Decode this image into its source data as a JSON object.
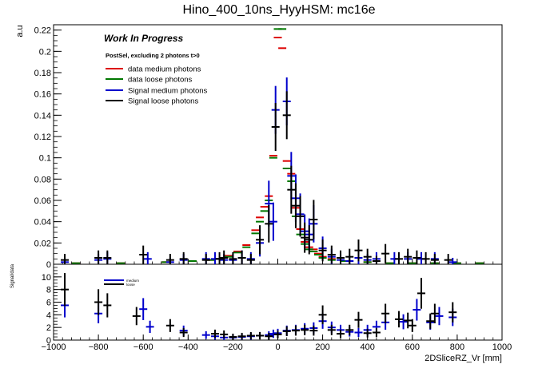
{
  "chart_data": {
    "type": "scatter",
    "title": "Hino_400_10ns_HyyHSM: mc16e",
    "xlabel": "2DSliceRZ_Vr [mm]",
    "xlim": [
      -1000,
      1000
    ],
    "x_ticks": [
      -1000,
      -800,
      -600,
      -400,
      -200,
      0,
      200,
      400,
      600,
      800,
      1000
    ],
    "top_panel": {
      "ylabel": "a.u",
      "ylim": [
        0,
        0.225
      ],
      "y_ticks": [
        "0",
        "0.02",
        "0.04",
        "0.06",
        "0.08",
        "0.1",
        "0.12",
        "0.14",
        "0.16",
        "0.18",
        "0.2",
        "0.22"
      ],
      "annotations": [
        "Work In Progress",
        "PostSel, excluding 2 photons t>0"
      ],
      "series": [
        {
          "name": "data medium photons",
          "color": "#dd0000",
          "points": [
            [
              -900,
              0.001
            ],
            [
              -700,
              0.001
            ],
            [
              -500,
              0.002
            ],
            [
              -380,
              0.003
            ],
            [
              -300,
              0.004
            ],
            [
              -260,
              0.005
            ],
            [
              -220,
              0.008
            ],
            [
              -180,
              0.012
            ],
            [
              -140,
              0.018
            ],
            [
              -100,
              0.032
            ],
            [
              -80,
              0.044
            ],
            [
              -60,
              0.054
            ],
            [
              -40,
              0.064
            ],
            [
              -20,
              0.102
            ],
            [
              0,
              0.213
            ],
            [
              20,
              0.203
            ],
            [
              40,
              0.097
            ],
            [
              60,
              0.085
            ],
            [
              80,
              0.053
            ],
            [
              100,
              0.033
            ],
            [
              120,
              0.021
            ],
            [
              140,
              0.016
            ],
            [
              160,
              0.014
            ],
            [
              180,
              0.01
            ],
            [
              200,
              0.007
            ],
            [
              240,
              0.005
            ],
            [
              300,
              0.003
            ],
            [
              400,
              0.002
            ],
            [
              500,
              0.001
            ],
            [
              600,
              0.001
            ],
            [
              700,
              0.001
            ],
            [
              800,
              0.001
            ],
            [
              900,
              0.001
            ]
          ]
        },
        {
          "name": "data loose photons",
          "color": "#007700",
          "points": [
            [
              -900,
              0.001
            ],
            [
              -700,
              0.001
            ],
            [
              -500,
              0.002
            ],
            [
              -380,
              0.003
            ],
            [
              -300,
              0.004
            ],
            [
              -260,
              0.005
            ],
            [
              -220,
              0.007
            ],
            [
              -180,
              0.011
            ],
            [
              -140,
              0.016
            ],
            [
              -100,
              0.029
            ],
            [
              -80,
              0.04
            ],
            [
              -60,
              0.05
            ],
            [
              -40,
              0.06
            ],
            [
              -20,
              0.1
            ],
            [
              0,
              0.221
            ],
            [
              20,
              0.221
            ],
            [
              40,
              0.09
            ],
            [
              60,
              0.078
            ],
            [
              80,
              0.045
            ],
            [
              100,
              0.028
            ],
            [
              120,
              0.019
            ],
            [
              140,
              0.014
            ],
            [
              160,
              0.012
            ],
            [
              180,
              0.009
            ],
            [
              200,
              0.006
            ],
            [
              240,
              0.004
            ],
            [
              300,
              0.003
            ],
            [
              400,
              0.002
            ],
            [
              500,
              0.001
            ],
            [
              600,
              0.001
            ],
            [
              700,
              0.001
            ],
            [
              800,
              0.001
            ],
            [
              900,
              0.001
            ]
          ]
        },
        {
          "name": "Signal medium photons",
          "color": "#0000cc",
          "points": [
            [
              -950,
              0.002
            ],
            [
              -800,
              0.004
            ],
            [
              -760,
              0.005
            ],
            [
              -580,
              0.005
            ],
            [
              -480,
              0.002
            ],
            [
              -420,
              0.004
            ],
            [
              -320,
              0.005
            ],
            [
              -280,
              0.005
            ],
            [
              -240,
              0.004
            ],
            [
              -200,
              0.004
            ],
            [
              -160,
              0.006
            ],
            [
              -120,
              0.005
            ],
            [
              -80,
              0.02
            ],
            [
              -40,
              0.057
            ],
            [
              -20,
              0.04
            ],
            [
              -10,
              0.145
            ],
            [
              40,
              0.153
            ],
            [
              60,
              0.083
            ],
            [
              80,
              0.062
            ],
            [
              100,
              0.047
            ],
            [
              120,
              0.031
            ],
            [
              140,
              0.028
            ],
            [
              160,
              0.038
            ],
            [
              200,
              0.015
            ],
            [
              240,
              0.007
            ],
            [
              280,
              0.004
            ],
            [
              320,
              0.003
            ],
            [
              360,
              0.006
            ],
            [
              400,
              0.004
            ],
            [
              440,
              0.005
            ],
            [
              520,
              0.005
            ],
            [
              580,
              0.005
            ],
            [
              640,
              0.005
            ],
            [
              700,
              0.005
            ],
            [
              780,
              0.002
            ]
          ]
        },
        {
          "name": "Signal loose photons",
          "color": "#000000",
          "points": [
            [
              -950,
              0.004
            ],
            [
              -800,
              0.006
            ],
            [
              -760,
              0.006
            ],
            [
              -600,
              0.009
            ],
            [
              -480,
              0.004
            ],
            [
              -420,
              0.005
            ],
            [
              -320,
              0.004
            ],
            [
              -260,
              0.005
            ],
            [
              -240,
              0.006
            ],
            [
              -200,
              0.005
            ],
            [
              -160,
              0.006
            ],
            [
              -120,
              0.004
            ],
            [
              -80,
              0.023
            ],
            [
              -40,
              0.038
            ],
            [
              -10,
              0.129
            ],
            [
              40,
              0.14
            ],
            [
              60,
              0.07
            ],
            [
              80,
              0.055
            ],
            [
              100,
              0.045
            ],
            [
              120,
              0.025
            ],
            [
              140,
              0.023
            ],
            [
              160,
              0.042
            ],
            [
              200,
              0.013
            ],
            [
              240,
              0.009
            ],
            [
              280,
              0.006
            ],
            [
              320,
              0.007
            ],
            [
              360,
              0.013
            ],
            [
              400,
              0.007
            ],
            [
              440,
              0.003
            ],
            [
              480,
              0.01
            ],
            [
              540,
              0.005
            ],
            [
              580,
              0.007
            ],
            [
              620,
              0.006
            ],
            [
              660,
              0.005
            ],
            [
              700,
              0.004
            ],
            [
              760,
              0.004
            ]
          ]
        }
      ]
    },
    "bottom_panel": {
      "ylabel": "Signal/data",
      "ylim": [
        0,
        12
      ],
      "y_ticks": [
        "0",
        "2",
        "4",
        "6",
        "8",
        "10"
      ],
      "legend": [
        "medium",
        "loose"
      ],
      "series": [
        {
          "name": "medium",
          "color": "#0000cc",
          "points": [
            [
              -950,
              5.5
            ],
            [
              -800,
              4.2
            ],
            [
              -600,
              4.9
            ],
            [
              -570,
              2.1
            ],
            [
              -420,
              1.5
            ],
            [
              -320,
              0.8
            ],
            [
              -280,
              0.6
            ],
            [
              -240,
              0.4
            ],
            [
              -200,
              0.4
            ],
            [
              -160,
              0.5
            ],
            [
              -120,
              0.6
            ],
            [
              -80,
              0.7
            ],
            [
              -40,
              0.8
            ],
            [
              -20,
              1.0
            ],
            [
              0,
              1.1
            ],
            [
              40,
              1.5
            ],
            [
              80,
              1.6
            ],
            [
              120,
              1.8
            ],
            [
              160,
              1.9
            ],
            [
              200,
              3.0
            ],
            [
              240,
              2.0
            ],
            [
              280,
              1.6
            ],
            [
              320,
              1.3
            ],
            [
              360,
              1.2
            ],
            [
              400,
              1.6
            ],
            [
              440,
              2.1
            ],
            [
              480,
              2.8
            ],
            [
              560,
              2.9
            ],
            [
              620,
              4.8
            ],
            [
              680,
              2.8
            ],
            [
              720,
              3.8
            ],
            [
              780,
              3.6
            ]
          ]
        },
        {
          "name": "loose",
          "color": "#000000",
          "points": [
            [
              -950,
              8.0
            ],
            [
              -800,
              6.0
            ],
            [
              -760,
              5.5
            ],
            [
              -630,
              3.8
            ],
            [
              -480,
              2.3
            ],
            [
              -420,
              1.2
            ],
            [
              -280,
              1.0
            ],
            [
              -240,
              0.9
            ],
            [
              -200,
              0.5
            ],
            [
              -160,
              0.6
            ],
            [
              -120,
              0.7
            ],
            [
              -80,
              0.7
            ],
            [
              -40,
              0.6
            ],
            [
              0,
              0.9
            ],
            [
              40,
              1.4
            ],
            [
              80,
              1.5
            ],
            [
              120,
              1.6
            ],
            [
              160,
              1.5
            ],
            [
              200,
              4.0
            ],
            [
              240,
              1.6
            ],
            [
              280,
              1.0
            ],
            [
              320,
              1.6
            ],
            [
              360,
              3.2
            ],
            [
              400,
              1.1
            ],
            [
              440,
              1.2
            ],
            [
              480,
              4.2
            ],
            [
              540,
              3.3
            ],
            [
              580,
              3.1
            ],
            [
              600,
              2.3
            ],
            [
              640,
              7.4
            ],
            [
              680,
              3.0
            ],
            [
              700,
              4.2
            ],
            [
              780,
              4.4
            ]
          ]
        }
      ]
    }
  }
}
